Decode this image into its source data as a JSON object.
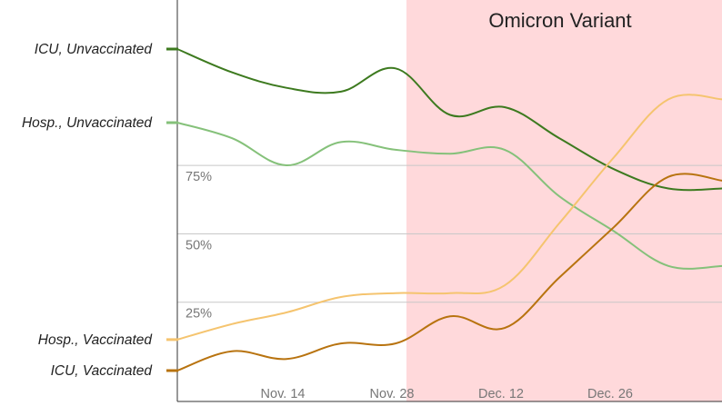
{
  "chart_data": {
    "type": "line",
    "x_tick_labels": [
      "Nov. 14",
      "Nov. 28",
      "Dec. 12",
      "Dec. 26"
    ],
    "y_tick_labels": [
      "25%",
      "50%",
      "75%"
    ],
    "ylim": [
      0,
      100
    ],
    "grid": "horizontal",
    "annotation": {
      "label": "Omicron Variant",
      "x_start": 2.1,
      "color": "#ffd9db"
    },
    "series": [
      {
        "name": "ICU, Unvaccinated",
        "color": "#3d7a1f",
        "x": [
          0,
          0.5,
          1,
          1.5,
          2,
          2.5,
          3,
          3.5,
          4,
          4.5,
          5
        ],
        "values": [
          83,
          77,
          73,
          72,
          78,
          66,
          68,
          60,
          52,
          47,
          47
        ]
      },
      {
        "name": "Hosp., Unvaccinated",
        "color": "#85c17a",
        "x": [
          0,
          0.5,
          1,
          1.5,
          2,
          2.5,
          3,
          3.5,
          4,
          4.5,
          5
        ],
        "values": [
          64,
          60,
          53,
          59,
          57,
          56,
          57,
          45,
          36,
          27,
          27
        ]
      },
      {
        "name": "Hosp., Vaccinated",
        "color": "#f5c46f",
        "x": [
          0,
          0.5,
          1,
          1.5,
          2,
          2.5,
          3,
          3.5,
          4,
          4.5,
          5
        ],
        "values": [
          8,
          12,
          15,
          19,
          20,
          20,
          22,
          38,
          55,
          70,
          70
        ]
      },
      {
        "name": "ICU, Vaccinated",
        "color": "#b8730f",
        "x": [
          0,
          0.5,
          1,
          1.5,
          2,
          2.5,
          3,
          3.5,
          4,
          4.5,
          5
        ],
        "values": [
          0,
          5,
          3,
          7,
          7,
          14,
          11,
          24,
          37,
          50,
          49
        ]
      }
    ]
  }
}
